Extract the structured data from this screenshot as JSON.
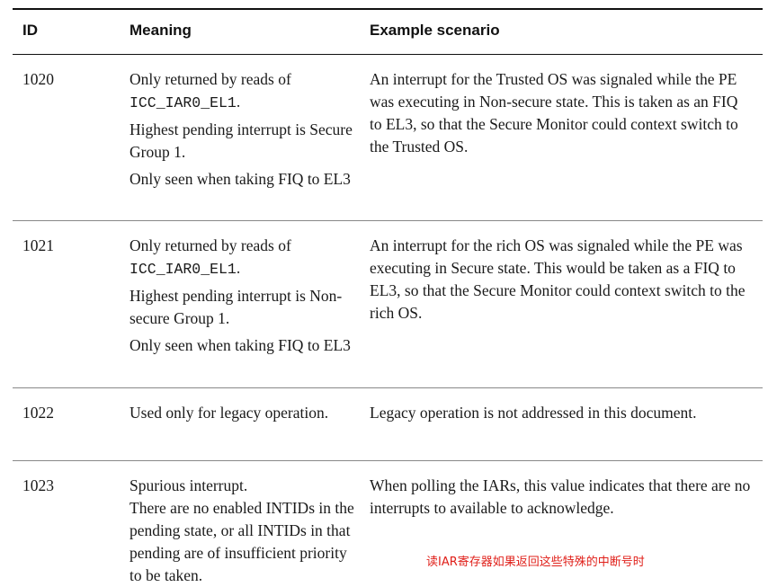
{
  "headers": {
    "id": "ID",
    "meaning": "Meaning",
    "example": "Example scenario"
  },
  "rows": [
    {
      "id": "1020",
      "meaning_1a": "Only returned by reads of",
      "meaning_1b": "ICC_IAR0_EL1",
      "meaning_1c": ".",
      "meaning_2": "Highest pending interrupt is Secure Group 1.",
      "meaning_3": "Only seen when taking FIQ to EL3",
      "example": "An interrupt for the Trusted OS was signaled while the PE was executing in Non-secure state.  This is taken as an FIQ to EL3, so that the Secure Monitor could context switch to the Trusted OS."
    },
    {
      "id": "1021",
      "meaning_1a": "Only returned by reads of",
      "meaning_1b": "ICC_IAR0_EL1",
      "meaning_1c": ".",
      "meaning_2": "Highest pending interrupt is Non-secure Group 1.",
      "meaning_3": "Only seen when taking FIQ to EL3",
      "example": "An interrupt for the rich OS was signaled while the PE was executing in Secure state.  This would be taken as a FIQ to EL3, so that the Secure Monitor could context switch to the rich OS."
    },
    {
      "id": "1022",
      "meaning": "Used only for legacy operation.",
      "example": "Legacy operation is not addressed in this document."
    },
    {
      "id": "1023",
      "meaning_1": "Spurious interrupt.",
      "meaning_2": "There are no enabled INTIDs in the pending state, or all INTIDs in that pending are of insufficient priority to be taken.",
      "example": "When polling the IARs, this value indicates that there are no  interrupts to available to acknowledge."
    }
  ],
  "annotation": "读IAR寄存器如果返回这些特殊的中断号时",
  "colors": {
    "annotation": "#e0201a"
  }
}
